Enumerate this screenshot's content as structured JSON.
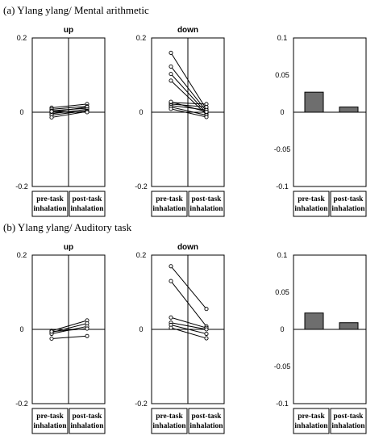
{
  "panels": [
    {
      "title": "(a) Ylang ylang/ Mental arithmetic",
      "charts": [
        {
          "type": "line",
          "title": "up",
          "ylim": [
            -0.2,
            0.2
          ],
          "yticks": [
            "0.2",
            "0",
            "-0.2"
          ],
          "x_categories": [
            "pre-task inhalation",
            "post-task inhalation"
          ],
          "x_labels": [
            [
              "pre-task",
              "inhalation"
            ],
            [
              "post-task",
              "inhalation"
            ]
          ],
          "series": [
            {
              "values": [
                0.012,
                0.022
              ]
            },
            {
              "values": [
                0.008,
                0.016
              ]
            },
            {
              "values": [
                0.004,
                0.011
              ]
            },
            {
              "values": [
                0.0,
                0.014
              ]
            },
            {
              "values": [
                -0.004,
                0.008
              ]
            },
            {
              "values": [
                -0.008,
                0.004
              ]
            },
            {
              "values": [
                -0.014,
                0.002
              ]
            },
            {
              "values": [
                0.002,
                0.0
              ]
            }
          ]
        },
        {
          "type": "line",
          "title": "down",
          "ylim": [
            -0.2,
            0.2
          ],
          "yticks": [
            "0.2",
            "0",
            "-0.2"
          ],
          "x_categories": [
            "pre-task inhalation",
            "post-task inhalation"
          ],
          "x_labels": [
            [
              "pre-task",
              "inhalation"
            ],
            [
              "post-task",
              "inhalation"
            ]
          ],
          "series": [
            {
              "values": [
                0.16,
                0.008
              ]
            },
            {
              "values": [
                0.123,
                0.003
              ]
            },
            {
              "values": [
                0.103,
                -0.002
              ]
            },
            {
              "values": [
                0.085,
                -0.006
              ]
            },
            {
              "values": [
                0.026,
                0.022
              ]
            },
            {
              "values": [
                0.022,
                0.014
              ]
            },
            {
              "values": [
                0.018,
                0.006
              ]
            },
            {
              "values": [
                0.014,
                -0.008
              ]
            },
            {
              "values": [
                0.009,
                -0.013
              ]
            },
            {
              "values": [
                0.028,
                0.001
              ]
            }
          ]
        },
        {
          "type": "bar",
          "ylim": [
            -0.1,
            0.1
          ],
          "yticks": [
            "0.1",
            "0.05",
            "0",
            "-0.05",
            "-0.1"
          ],
          "categories": [
            "pre-task inhalation",
            "post-task inhalation"
          ],
          "x_labels": [
            [
              "pre-task",
              "inhalation"
            ],
            [
              "post-task",
              "inhalation"
            ]
          ],
          "values": [
            0.027,
            0.007
          ]
        }
      ]
    },
    {
      "title": "(b) Ylang ylang/ Auditory task",
      "charts": [
        {
          "type": "line",
          "title": "up",
          "ylim": [
            -0.2,
            0.2
          ],
          "yticks": [
            "0.2",
            "0",
            "-0.2"
          ],
          "x_categories": [
            "pre-task inhalation",
            "post-task inhalation"
          ],
          "x_labels": [
            [
              "pre-task",
              "inhalation"
            ],
            [
              "post-task",
              "inhalation"
            ]
          ],
          "series": [
            {
              "values": [
                -0.004,
                0.024
              ]
            },
            {
              "values": [
                -0.008,
                0.016
              ]
            },
            {
              "values": [
                -0.012,
                0.008
              ]
            },
            {
              "values": [
                -0.006,
                0.002
              ]
            },
            {
              "values": [
                -0.025,
                -0.018
              ]
            }
          ]
        },
        {
          "type": "line",
          "title": "down",
          "ylim": [
            -0.2,
            0.2
          ],
          "yticks": [
            "0.2",
            "0",
            "-0.2"
          ],
          "x_categories": [
            "pre-task inhalation",
            "post-task inhalation"
          ],
          "x_labels": [
            [
              "pre-task",
              "inhalation"
            ],
            [
              "post-task",
              "inhalation"
            ]
          ],
          "series": [
            {
              "values": [
                0.17,
                0.055
              ]
            },
            {
              "values": [
                0.13,
                0.008
              ]
            },
            {
              "values": [
                0.032,
                0.004
              ]
            },
            {
              "values": [
                0.018,
                0.0
              ]
            },
            {
              "values": [
                0.012,
                -0.012
              ]
            },
            {
              "values": [
                0.004,
                -0.024
              ]
            }
          ]
        },
        {
          "type": "bar",
          "ylim": [
            -0.1,
            0.1
          ],
          "yticks": [
            "0.1",
            "0.05",
            "0",
            "-0.05",
            "-0.1"
          ],
          "categories": [
            "pre-task inhalation",
            "post-task inhalation"
          ],
          "x_labels": [
            [
              "pre-task",
              "inhalation"
            ],
            [
              "post-task",
              "inhalation"
            ]
          ],
          "values": [
            0.022,
            0.009
          ]
        }
      ]
    }
  ]
}
